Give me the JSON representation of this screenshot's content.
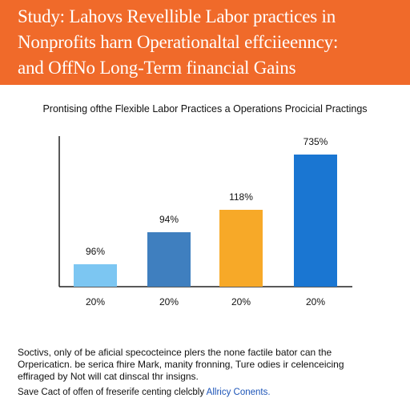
{
  "header": {
    "lines": [
      "Study: Lahovs Revellible Labor practices in",
      "Nonprofits harn Operationaltal effciieenncy:",
      "and OffNo Long-Term financial Gains"
    ],
    "color": "#f06a2a"
  },
  "chart_data": {
    "type": "bar",
    "title": "Prontising ofthe Flexible Labor Practices a Operations Procicial Practings",
    "categories": [
      "20%",
      "20%",
      "20%",
      "20%"
    ],
    "values": [
      96,
      94,
      118,
      735
    ],
    "data_labels": [
      "96%",
      "94%",
      "118%",
      "735%"
    ],
    "colors": [
      "#7cc6f2",
      "#3f7fbf",
      "#f7a928",
      "#1a76d2"
    ],
    "xlabel": "",
    "ylabel": "",
    "grid": false
  },
  "body_text": {
    "lines": [
      "Soctivs, only of be aficial specocteince plers the none factile bator can the",
      "Orpericaticn. be serica fhire Mark, manity fronning, Ture odies ir celenceicing",
      "effiraged by Not will cat dinscal thr insigns."
    ]
  },
  "footer": {
    "text": "Save Cact of offen of freserife centing clelcbly",
    "link": "Allricy Conents."
  }
}
